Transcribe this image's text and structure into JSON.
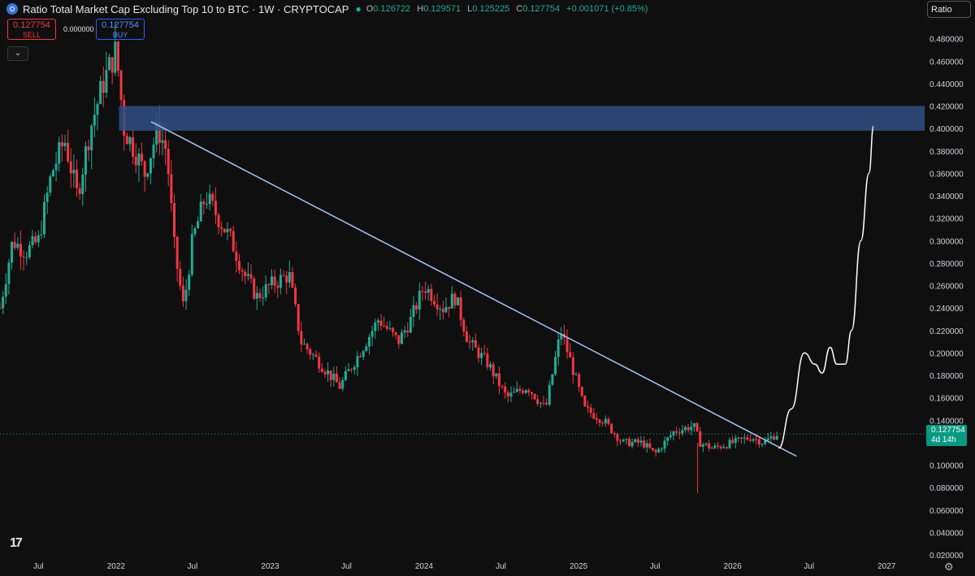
{
  "header": {
    "title": "Ratio Total Market Cap Excluding Top 10 to BTC · 1W · CRYPTOCAP",
    "ohlc": [
      {
        "key": "O",
        "value": "0.126722"
      },
      {
        "key": "H",
        "value": "0.129571"
      },
      {
        "key": "L",
        "value": "0.125225"
      },
      {
        "key": "C",
        "value": "0.127754"
      }
    ],
    "change": "+0.001071 (+0.85%)"
  },
  "trade": {
    "sell_price": "0.127754",
    "sell_label": "SELL",
    "buy_price": "0.127754",
    "buy_label": "BUY",
    "spread": "0.000000"
  },
  "scale_button": "Ratio",
  "last_price": {
    "value": "0.127754",
    "countdown": "4d 14h"
  },
  "colors": {
    "up": "#22ab94",
    "down": "#f23645",
    "zone": "#2f4f82",
    "trendline": "#a8c4f5",
    "projection": "#ffffff",
    "background": "#0f0f0f"
  },
  "icons": [
    "symbol-icon",
    "chevron-down-icon",
    "tradingview-logo-icon",
    "settings-icon"
  ],
  "chart_data": {
    "type": "candlestick",
    "ylim": [
      0.02,
      0.5
    ],
    "y_ticks": [
      "0.480000",
      "0.460000",
      "0.440000",
      "0.420000",
      "0.400000",
      "0.380000",
      "0.360000",
      "0.340000",
      "0.320000",
      "0.300000",
      "0.280000",
      "0.260000",
      "0.240000",
      "0.220000",
      "0.200000",
      "0.180000",
      "0.160000",
      "0.140000",
      "0.120000",
      "0.100000",
      "0.080000",
      "0.060000",
      "0.040000",
      "0.020000"
    ],
    "x_ticks": [
      {
        "label": "Jul",
        "date": "2021-07-01"
      },
      {
        "label": "2022",
        "date": "2022-01-01"
      },
      {
        "label": "Jul",
        "date": "2022-07-01"
      },
      {
        "label": "2023",
        "date": "2023-01-01"
      },
      {
        "label": "Jul",
        "date": "2023-07-01"
      },
      {
        "label": "2024",
        "date": "2024-01-01"
      },
      {
        "label": "Jul",
        "date": "2024-07-01"
      },
      {
        "label": "2025",
        "date": "2025-01-01"
      },
      {
        "label": "Jul",
        "date": "2025-07-01"
      },
      {
        "label": "2026",
        "date": "2026-01-01"
      },
      {
        "label": "Jul",
        "date": "2026-07-01"
      },
      {
        "label": "2027",
        "date": "2027-01-01"
      }
    ],
    "price_path": [
      [
        "2021-04-01",
        0.24
      ],
      [
        "2021-05-01",
        0.3
      ],
      [
        "2021-06-01",
        0.29
      ],
      [
        "2021-07-01",
        0.3
      ],
      [
        "2021-08-01",
        0.36
      ],
      [
        "2021-09-01",
        0.39
      ],
      [
        "2021-10-01",
        0.34
      ],
      [
        "2021-11-01",
        0.4
      ],
      [
        "2021-12-01",
        0.44
      ],
      [
        "2022-01-01",
        0.47
      ],
      [
        "2022-01-20",
        0.4
      ],
      [
        "2022-02-15",
        0.38
      ],
      [
        "2022-03-10",
        0.36
      ],
      [
        "2022-04-10",
        0.4
      ],
      [
        "2022-05-01",
        0.38
      ],
      [
        "2022-05-20",
        0.29
      ],
      [
        "2022-06-10",
        0.24
      ],
      [
        "2022-07-01",
        0.3
      ],
      [
        "2022-08-01",
        0.34
      ],
      [
        "2022-09-01",
        0.32
      ],
      [
        "2022-10-01",
        0.3
      ],
      [
        "2022-11-01",
        0.27
      ],
      [
        "2022-12-01",
        0.25
      ],
      [
        "2023-01-01",
        0.26
      ],
      [
        "2023-02-15",
        0.27
      ],
      [
        "2023-03-15",
        0.21
      ],
      [
        "2023-05-01",
        0.19
      ],
      [
        "2023-06-15",
        0.17
      ],
      [
        "2023-08-01",
        0.2
      ],
      [
        "2023-09-15",
        0.23
      ],
      [
        "2023-11-01",
        0.21
      ],
      [
        "2023-12-01",
        0.23
      ],
      [
        "2024-01-01",
        0.26
      ],
      [
        "2024-02-15",
        0.24
      ],
      [
        "2024-03-15",
        0.25
      ],
      [
        "2024-04-15",
        0.21
      ],
      [
        "2024-06-01",
        0.19
      ],
      [
        "2024-07-15",
        0.16
      ],
      [
        "2024-09-01",
        0.17
      ],
      [
        "2024-10-15",
        0.15
      ],
      [
        "2024-11-20",
        0.22
      ],
      [
        "2024-12-15",
        0.19
      ],
      [
        "2025-01-15",
        0.15
      ],
      [
        "2025-03-01",
        0.14
      ],
      [
        "2025-04-15",
        0.12
      ],
      [
        "2025-06-01",
        0.12
      ],
      [
        "2025-07-01",
        0.11
      ],
      [
        "2025-08-15",
        0.13
      ],
      [
        "2025-10-01",
        0.135
      ],
      [
        "2025-10-15",
        0.12
      ],
      [
        "2025-11-15",
        0.115
      ],
      [
        "2026-01-01",
        0.12
      ],
      [
        "2026-02-15",
        0.125
      ],
      [
        "2026-03-15",
        0.12
      ],
      [
        "2026-04-15",
        0.1278
      ]
    ],
    "low_wick": {
      "date": "2025-10-10",
      "low": 0.075
    },
    "last_close": 0.127754,
    "resistance_zone": {
      "from": 0.398,
      "to": 0.42
    },
    "trendline": {
      "start": {
        "date": "2022-03-25",
        "value": 0.406
      },
      "end": {
        "date": "2026-06-01",
        "value": 0.108
      }
    },
    "projection": [
      [
        "2026-04-20",
        0.115
      ],
      [
        "2026-05-20",
        0.15
      ],
      [
        "2026-06-20",
        0.2
      ],
      [
        "2026-07-15",
        0.19
      ],
      [
        "2026-08-01",
        0.182
      ],
      [
        "2026-08-20",
        0.205
      ],
      [
        "2026-09-05",
        0.19
      ],
      [
        "2026-09-25",
        0.19
      ],
      [
        "2026-10-10",
        0.22
      ],
      [
        "2026-11-01",
        0.3
      ],
      [
        "2026-11-20",
        0.36
      ],
      [
        "2026-12-01",
        0.402
      ]
    ]
  }
}
